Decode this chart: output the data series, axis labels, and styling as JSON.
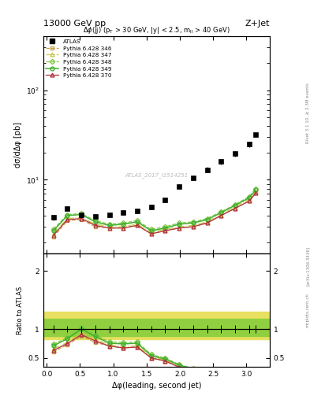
{
  "title_left": "13000 GeV pp",
  "title_right": "Z+Jet",
  "annotation": "Δφ(jj) (p_T > 30 GeV, |y| < 2.5, ᵐₗₗ > 40 GeV)",
  "watermark": "ATLAS_2017_I1514251",
  "xlabel": "Δφ(leading, second jet)",
  "ylabel": "dσ/dΔφ [pb]",
  "ylabel_ratio": "Ratio to ATLAS",
  "right_label": "Rivet 3.1.10, ≥ 2.3M events",
  "arxiv_label": "[arXiv:1306.3436]",
  "mcplots_label": "mcplots.cern.ch",
  "py346_color": "#c8a050",
  "py347_color": "#c8c840",
  "py348_color": "#80c840",
  "py349_color": "#40b030",
  "py370_color": "#b03040",
  "band_yellow": "#e8e060",
  "band_green": "#90d040",
  "ylim_main": [
    1.5,
    400
  ],
  "ylim_ratio": [
    0.35,
    2.3
  ],
  "xlim": [
    -0.05,
    3.35
  ]
}
